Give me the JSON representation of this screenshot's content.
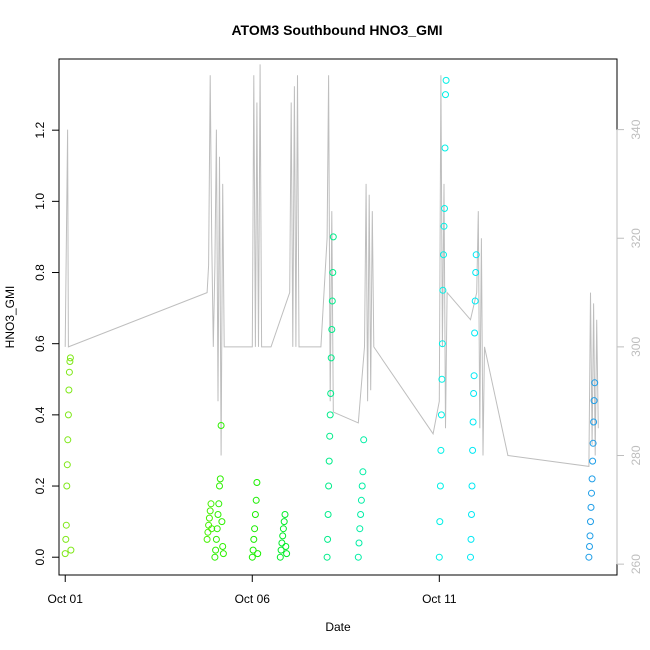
{
  "chart_data": {
    "type": "scatter",
    "title": "ATOM3 Southbound HNO3_GMI",
    "xlabel": "Date",
    "ylabel": "HNO3_GMI",
    "x_axis": {
      "type": "date",
      "range": [
        "2017-09-30T20:00",
        "2017-10-15T18:00"
      ],
      "ticks": [
        {
          "value": "2017-10-01",
          "label": "Oct 01"
        },
        {
          "value": "2017-10-06",
          "label": "Oct 06"
        },
        {
          "value": "2017-10-11",
          "label": "Oct 11"
        }
      ]
    },
    "y_axis": {
      "range": [
        -0.05,
        1.4
      ],
      "ticks": [
        {
          "value": 0.0,
          "label": "0.0"
        },
        {
          "value": 0.2,
          "label": "0.2"
        },
        {
          "value": 0.4,
          "label": "0.4"
        },
        {
          "value": 0.6,
          "label": "0.6"
        },
        {
          "value": 0.8,
          "label": "0.8"
        },
        {
          "value": 1.0,
          "label": "1.0"
        },
        {
          "value": 1.2,
          "label": "1.2"
        }
      ]
    },
    "y2_axis": {
      "range": [
        258,
        353
      ],
      "color": "#bebebe",
      "ticks": [
        {
          "value": 260,
          "label": "260"
        },
        {
          "value": 280,
          "label": "280"
        },
        {
          "value": 300,
          "label": "300"
        },
        {
          "value": 320,
          "label": "320"
        },
        {
          "value": 340,
          "label": "340"
        }
      ]
    },
    "grid": false,
    "legend": "none",
    "secondary_line": {
      "color": "#bebebe",
      "points": [
        [
          "2017-10-01T00:00",
          300
        ],
        [
          "2017-10-01T01:30",
          340
        ],
        [
          "2017-10-01T02:00",
          300
        ],
        [
          "2017-10-04T19:00",
          310
        ],
        [
          "2017-10-04T20:00",
          315
        ],
        [
          "2017-10-04T21:00",
          350
        ],
        [
          "2017-10-04T22:00",
          320
        ],
        [
          "2017-10-04T23:00",
          300
        ],
        [
          "2017-10-05T00:00",
          315
        ],
        [
          "2017-10-05T01:00",
          340
        ],
        [
          "2017-10-05T02:00",
          290
        ],
        [
          "2017-10-05T03:00",
          335
        ],
        [
          "2017-10-05T04:00",
          280
        ],
        [
          "2017-10-05T05:00",
          330
        ],
        [
          "2017-10-05T06:00",
          300
        ],
        [
          "2017-10-06T00:00",
          300
        ],
        [
          "2017-10-06T01:00",
          350
        ],
        [
          "2017-10-06T02:00",
          300
        ],
        [
          "2017-10-06T03:00",
          345
        ],
        [
          "2017-10-06T04:00",
          300
        ],
        [
          "2017-10-06T05:00",
          352
        ],
        [
          "2017-10-06T06:00",
          300
        ],
        [
          "2017-10-06T12:00",
          300
        ],
        [
          "2017-10-07T00:00",
          310
        ],
        [
          "2017-10-07T01:00",
          345
        ],
        [
          "2017-10-07T02:00",
          300
        ],
        [
          "2017-10-07T03:00",
          348
        ],
        [
          "2017-10-07T04:00",
          300
        ],
        [
          "2017-10-07T05:00",
          350
        ],
        [
          "2017-10-07T06:00",
          300
        ],
        [
          "2017-10-07T20:00",
          300
        ],
        [
          "2017-10-08T00:00",
          320
        ],
        [
          "2017-10-08T01:00",
          350
        ],
        [
          "2017-10-08T02:00",
          290
        ],
        [
          "2017-10-08T03:00",
          325
        ],
        [
          "2017-10-08T04:00",
          288
        ],
        [
          "2017-10-08T20:00",
          286
        ],
        [
          "2017-10-09T00:00",
          300
        ],
        [
          "2017-10-09T01:00",
          330
        ],
        [
          "2017-10-09T02:00",
          290
        ],
        [
          "2017-10-09T03:00",
          328
        ],
        [
          "2017-10-09T04:00",
          292
        ],
        [
          "2017-10-09T05:00",
          325
        ],
        [
          "2017-10-09T06:00",
          300
        ],
        [
          "2017-10-10T20:00",
          284
        ],
        [
          "2017-10-11T00:00",
          290
        ],
        [
          "2017-10-11T01:00",
          350
        ],
        [
          "2017-10-11T02:00",
          300
        ],
        [
          "2017-10-11T03:00",
          330
        ],
        [
          "2017-10-11T04:00",
          285
        ],
        [
          "2017-10-11T05:00",
          310
        ],
        [
          "2017-10-11T20:00",
          305
        ],
        [
          "2017-10-12T00:00",
          310
        ],
        [
          "2017-10-12T01:00",
          325
        ],
        [
          "2017-10-12T02:00",
          285
        ],
        [
          "2017-10-12T03:00",
          320
        ],
        [
          "2017-10-12T04:00",
          280
        ],
        [
          "2017-10-12T05:00",
          300
        ],
        [
          "2017-10-12T20:00",
          280
        ],
        [
          "2017-10-15T00:00",
          278
        ],
        [
          "2017-10-15T01:00",
          310
        ],
        [
          "2017-10-15T02:00",
          282
        ],
        [
          "2017-10-15T03:00",
          308
        ],
        [
          "2017-10-15T04:00",
          280
        ],
        [
          "2017-10-15T05:00",
          305
        ],
        [
          "2017-10-15T06:00",
          285
        ]
      ]
    },
    "series": [
      {
        "color": "#7fe818",
        "x": [
          "2017-10-01T00:00",
          "2017-10-01T00:20",
          "2017-10-01T00:40",
          "2017-10-01T01:00",
          "2017-10-01T01:20",
          "2017-10-01T01:40",
          "2017-10-01T02:00",
          "2017-10-01T02:20",
          "2017-10-01T02:40",
          "2017-10-01T03:00",
          "2017-10-01T03:20",
          "2017-10-01T03:40"
        ],
        "y": [
          0.01,
          0.05,
          0.09,
          0.2,
          0.26,
          0.33,
          0.4,
          0.47,
          0.52,
          0.55,
          0.56,
          0.02
        ]
      },
      {
        "color": "#45f000",
        "x": [
          "2017-10-04T19:00",
          "2017-10-04T19:30",
          "2017-10-04T20:00",
          "2017-10-04T20:30",
          "2017-10-04T21:00",
          "2017-10-04T21:30",
          "2017-10-04T22:00"
        ],
        "y": [
          0.05,
          0.07,
          0.09,
          0.11,
          0.13,
          0.15,
          0.08
        ]
      },
      {
        "color": "#2ef000",
        "x": [
          "2017-10-05T00:00",
          "2017-10-05T00:30",
          "2017-10-05T01:00",
          "2017-10-05T01:30",
          "2017-10-05T02:00",
          "2017-10-05T02:30",
          "2017-10-05T03:00",
          "2017-10-05T03:30",
          "2017-10-05T04:00",
          "2017-10-05T04:30",
          "2017-10-05T05:00",
          "2017-10-05T05:30"
        ],
        "y": [
          0.0,
          0.02,
          0.05,
          0.08,
          0.12,
          0.15,
          0.2,
          0.22,
          0.37,
          0.1,
          0.03,
          0.01
        ]
      },
      {
        "color": "#1aee00",
        "x": [
          "2017-10-06T00:00",
          "2017-10-06T00:30",
          "2017-10-06T01:00",
          "2017-10-06T01:30",
          "2017-10-06T02:00",
          "2017-10-06T02:30",
          "2017-10-06T03:00",
          "2017-10-06T03:30"
        ],
        "y": [
          0.0,
          0.02,
          0.05,
          0.08,
          0.12,
          0.16,
          0.21,
          0.01
        ]
      },
      {
        "color": "#00ec28",
        "x": [
          "2017-10-06T18:00",
          "2017-10-06T18:30",
          "2017-10-06T19:00",
          "2017-10-06T19:30",
          "2017-10-06T20:00",
          "2017-10-06T20:30",
          "2017-10-06T21:00",
          "2017-10-06T21:30",
          "2017-10-06T22:00"
        ],
        "y": [
          0.0,
          0.02,
          0.04,
          0.06,
          0.08,
          0.1,
          0.12,
          0.03,
          0.01
        ]
      },
      {
        "color": "#00ec8a",
        "x": [
          "2017-10-08T00:00",
          "2017-10-08T00:20",
          "2017-10-08T00:40",
          "2017-10-08T01:00",
          "2017-10-08T01:20",
          "2017-10-08T01:40",
          "2017-10-08T02:00",
          "2017-10-08T02:20",
          "2017-10-08T02:40",
          "2017-10-08T03:00",
          "2017-10-08T03:20",
          "2017-10-08T03:40",
          "2017-10-08T04:00"
        ],
        "y": [
          0.0,
          0.05,
          0.12,
          0.2,
          0.27,
          0.34,
          0.4,
          0.46,
          0.56,
          0.64,
          0.72,
          0.8,
          0.9
        ]
      },
      {
        "color": "#00eea5",
        "x": [
          "2017-10-08T20:00",
          "2017-10-08T20:30",
          "2017-10-08T21:00",
          "2017-10-08T21:30",
          "2017-10-08T22:00",
          "2017-10-08T22:30",
          "2017-10-08T23:00",
          "2017-10-08T23:30"
        ],
        "y": [
          0.0,
          0.04,
          0.08,
          0.12,
          0.16,
          0.2,
          0.24,
          0.33
        ]
      },
      {
        "color": "#00f0e6",
        "x": [
          "2017-10-11T00:00",
          "2017-10-11T00:20",
          "2017-10-11T00:40",
          "2017-10-11T01:00",
          "2017-10-11T01:20",
          "2017-10-11T01:40",
          "2017-10-11T02:00",
          "2017-10-11T02:20",
          "2017-10-11T02:40",
          "2017-10-11T03:00",
          "2017-10-11T03:20",
          "2017-10-11T03:40",
          "2017-10-11T04:00",
          "2017-10-11T04:20"
        ],
        "y": [
          0.0,
          0.1,
          0.2,
          0.3,
          0.4,
          0.5,
          0.6,
          0.75,
          0.85,
          0.93,
          0.98,
          1.15,
          1.3,
          1.34
        ]
      },
      {
        "color": "#00e8f4",
        "x": [
          "2017-10-11T20:00",
          "2017-10-11T20:20",
          "2017-10-11T20:40",
          "2017-10-11T21:00",
          "2017-10-11T21:20",
          "2017-10-11T21:40",
          "2017-10-11T22:00",
          "2017-10-11T22:20",
          "2017-10-11T22:40",
          "2017-10-11T23:00",
          "2017-10-11T23:20",
          "2017-10-11T23:40"
        ],
        "y": [
          0.0,
          0.05,
          0.12,
          0.2,
          0.3,
          0.38,
          0.46,
          0.51,
          0.63,
          0.72,
          0.8,
          0.85
        ]
      },
      {
        "color": "#1e9ee8",
        "x": [
          "2017-10-15T00:00",
          "2017-10-15T00:20",
          "2017-10-15T00:40",
          "2017-10-15T01:00",
          "2017-10-15T01:20",
          "2017-10-15T01:40",
          "2017-10-15T02:00",
          "2017-10-15T02:20",
          "2017-10-15T02:40",
          "2017-10-15T03:00",
          "2017-10-15T03:20",
          "2017-10-15T03:40"
        ],
        "y": [
          0.0,
          0.03,
          0.06,
          0.1,
          0.14,
          0.18,
          0.22,
          0.27,
          0.32,
          0.38,
          0.44,
          0.49
        ]
      }
    ]
  }
}
